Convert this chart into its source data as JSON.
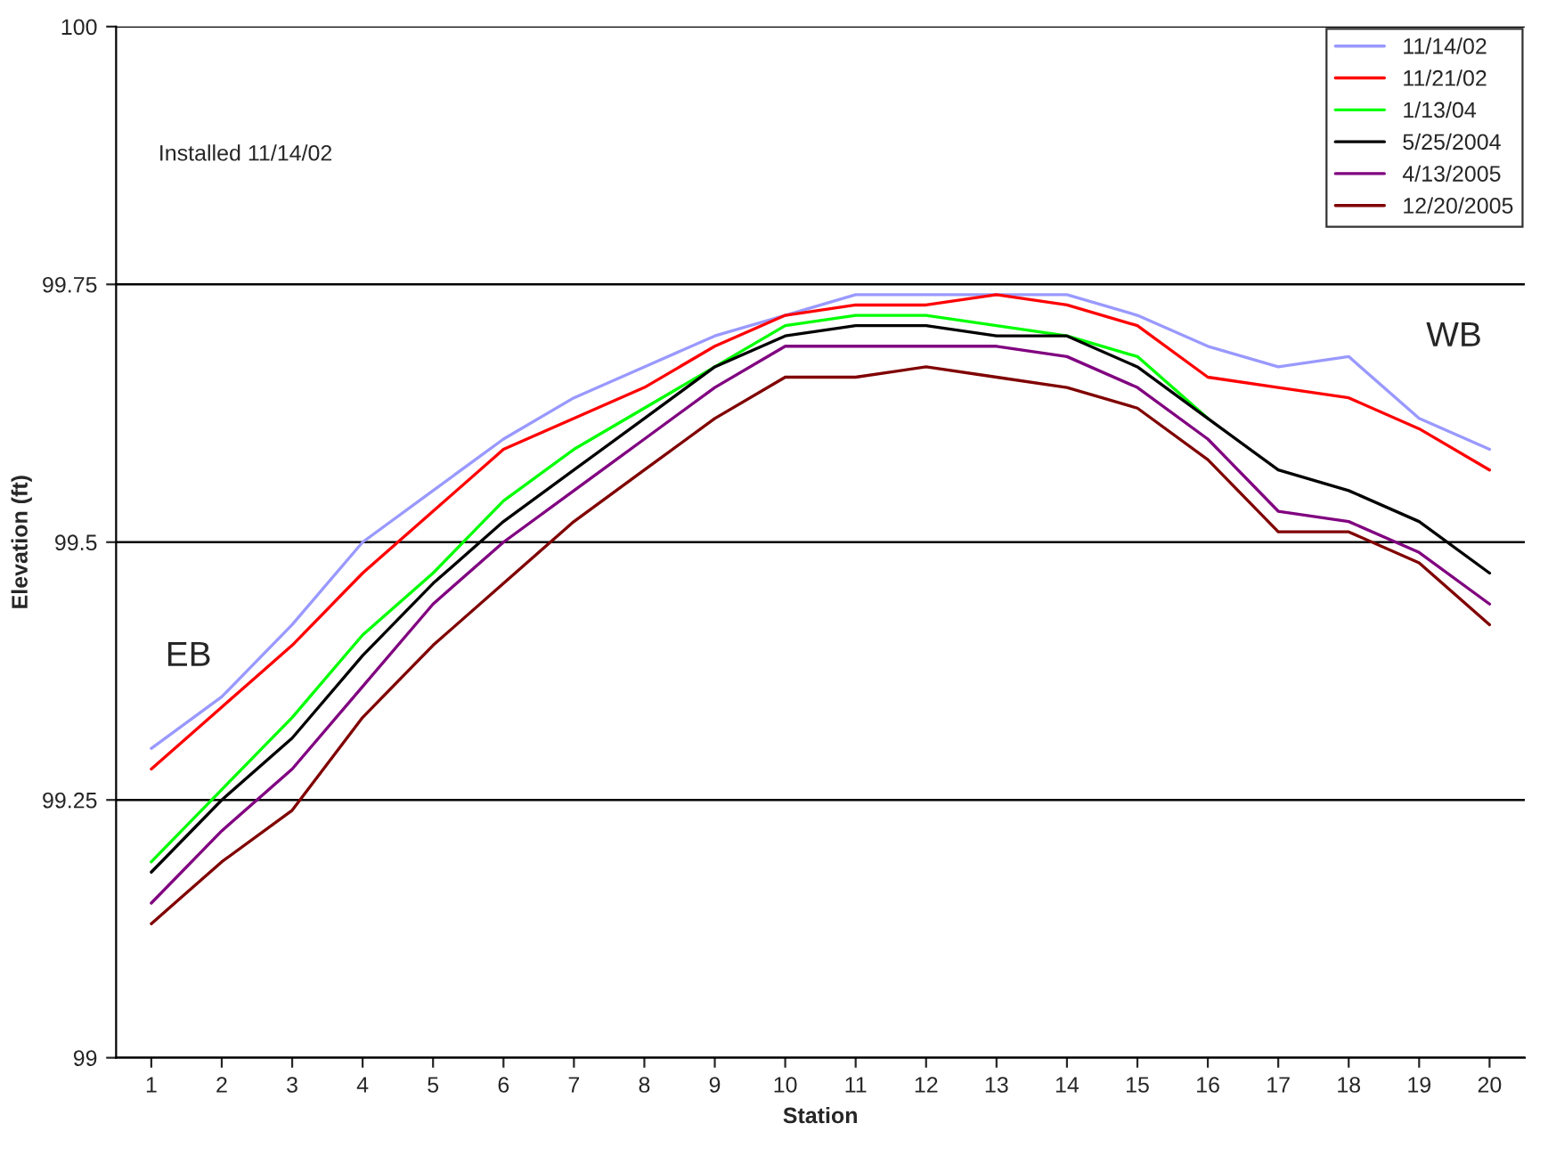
{
  "chart_data": {
    "type": "line",
    "xlabel": "Station",
    "ylabel": "Elevation (ft)",
    "categories": [
      "1",
      "2",
      "3",
      "4",
      "5",
      "6",
      "7",
      "8",
      "9",
      "10",
      "11",
      "12",
      "13",
      "14",
      "15",
      "16",
      "17",
      "18",
      "19",
      "20"
    ],
    "ylim": [
      99,
      100
    ],
    "yticks": [
      99,
      99.25,
      99.5,
      99.75,
      100
    ],
    "grid": "y",
    "legend": "top right",
    "annotations": [
      "Installed 11/14/02",
      "EB",
      "WB"
    ],
    "series": [
      {
        "name": "11/14/02",
        "color": "#9999ff",
        "values": [
          99.3,
          99.35,
          99.42,
          99.5,
          99.55,
          99.6,
          99.64,
          99.67,
          99.7,
          99.72,
          99.74,
          99.74,
          99.74,
          99.74,
          99.72,
          99.69,
          99.67,
          99.68,
          99.62,
          99.59
        ]
      },
      {
        "name": "11/21/02",
        "color": "#ff0000",
        "values": [
          99.28,
          99.34,
          99.4,
          99.47,
          99.53,
          99.59,
          99.62,
          99.65,
          99.69,
          99.72,
          99.73,
          99.73,
          99.74,
          99.73,
          99.71,
          99.66,
          99.65,
          99.64,
          99.61,
          99.57
        ]
      },
      {
        "name": "1/13/04",
        "color": "#00ff00",
        "values": [
          99.19,
          99.26,
          99.33,
          99.41,
          99.47,
          99.54,
          99.59,
          99.63,
          99.67,
          99.71,
          99.72,
          99.72,
          99.71,
          99.7,
          99.68,
          99.62,
          null,
          null,
          null,
          null
        ]
      },
      {
        "name": "5/25/2004",
        "color": "#000000",
        "values": [
          99.18,
          99.25,
          99.31,
          99.39,
          99.46,
          99.52,
          99.57,
          99.62,
          99.67,
          99.7,
          99.71,
          99.71,
          99.7,
          99.7,
          99.67,
          99.62,
          99.57,
          99.55,
          99.52,
          99.47
        ]
      },
      {
        "name": "4/13/2005",
        "color": "#800080",
        "values": [
          99.15,
          99.22,
          99.28,
          99.36,
          99.44,
          99.5,
          99.55,
          99.6,
          99.65,
          99.69,
          99.69,
          99.69,
          99.69,
          99.68,
          99.65,
          99.6,
          99.53,
          99.52,
          99.49,
          99.44
        ]
      },
      {
        "name": "12/20/2005",
        "color": "#800000",
        "values": [
          99.13,
          99.19,
          99.24,
          99.33,
          99.4,
          99.46,
          99.52,
          99.57,
          99.62,
          99.66,
          99.66,
          99.67,
          99.66,
          99.65,
          99.63,
          99.58,
          99.51,
          99.51,
          99.48,
          99.42
        ]
      }
    ]
  }
}
